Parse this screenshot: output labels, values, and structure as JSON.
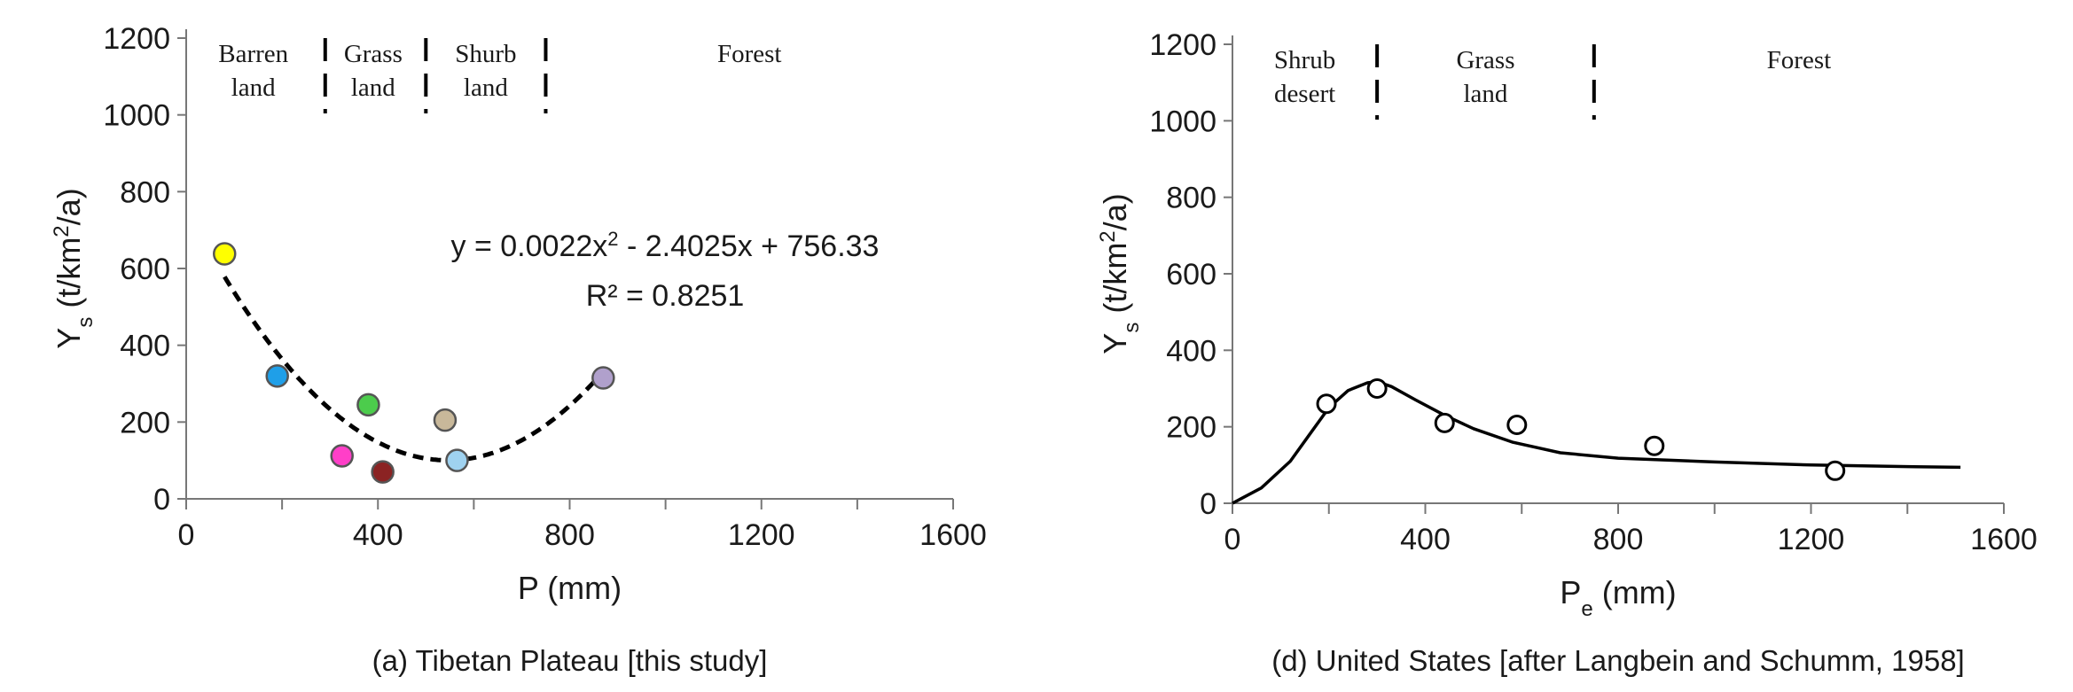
{
  "chart_data": [
    {
      "type": "scatter",
      "panel_caption": "(a)  Tibetan Plateau [this study]",
      "xlabel": "P (mm)",
      "ylabel": "Y",
      "ylabel_sub": "s",
      "ylabel_unit": "(t/km",
      "ylabel_sup": "2",
      "ylabel_tail": "/a)",
      "xlim": [
        0,
        1600
      ],
      "ylim": [
        0,
        1200
      ],
      "xticks": [
        "0",
        "400",
        "800",
        "1200",
        "1600"
      ],
      "yticks": [
        "0",
        "200",
        "400",
        "600",
        "800",
        "1000",
        "1200"
      ],
      "points": [
        {
          "x": 80,
          "y": 638,
          "color": "#ffff00"
        },
        {
          "x": 190,
          "y": 320,
          "color": "#1f9fe8"
        },
        {
          "x": 380,
          "y": 245,
          "color": "#4ccc4c"
        },
        {
          "x": 325,
          "y": 112,
          "color": "#ff3fc8"
        },
        {
          "x": 410,
          "y": 70,
          "color": "#8b2323"
        },
        {
          "x": 540,
          "y": 205,
          "color": "#c8b89a"
        },
        {
          "x": 565,
          "y": 100,
          "color": "#9fd2f0"
        },
        {
          "x": 870,
          "y": 315,
          "color": "#b0a0cc"
        }
      ],
      "fit": {
        "type": "quadratic",
        "coefficients": {
          "a": 0.0022,
          "b": -2.4025,
          "c": 756.33
        },
        "x_range": [
          80,
          870
        ],
        "style": "dashed"
      },
      "equation_label": "y = 0.0022x",
      "equation_sup": "2",
      "equation_tail": " - 2.4025x + 756.33",
      "r2_label": "R² = 0.8251",
      "zone_boundaries": [
        290,
        500,
        750
      ],
      "zones": [
        {
          "lines": [
            "Barren",
            "land"
          ],
          "x_center": 140
        },
        {
          "lines": [
            "Grass",
            "land"
          ],
          "x_center": 390
        },
        {
          "lines": [
            "Shurb",
            "land"
          ],
          "x_center": 625
        },
        {
          "lines": [
            "Forest"
          ],
          "x_center": 1175
        }
      ]
    },
    {
      "type": "line",
      "panel_caption": "(d)  United States [after Langbein and Schumm, 1958]",
      "xlabel": "P",
      "xlabel_sub": "e",
      "xlabel_tail": " (mm)",
      "ylabel": "Y",
      "ylabel_sub": "s",
      "ylabel_unit": "(t/km",
      "ylabel_sup": "2",
      "ylabel_tail": "/a)",
      "xlim": [
        0,
        1600
      ],
      "ylim": [
        0,
        1200
      ],
      "xticks": [
        "0",
        "400",
        "800",
        "1200",
        "1600"
      ],
      "yticks": [
        "0",
        "200",
        "400",
        "600",
        "800",
        "1000",
        "1200"
      ],
      "points": [
        {
          "x": 195,
          "y": 260
        },
        {
          "x": 300,
          "y": 300
        },
        {
          "x": 440,
          "y": 210
        },
        {
          "x": 590,
          "y": 205
        },
        {
          "x": 875,
          "y": 150
        },
        {
          "x": 1250,
          "y": 85
        }
      ],
      "curve": {
        "x": [
          0,
          60,
          120,
          160,
          200,
          240,
          280,
          300,
          330,
          380,
          440,
          500,
          580,
          680,
          800,
          1000,
          1200,
          1400,
          1510
        ],
        "y": [
          0,
          40,
          110,
          180,
          250,
          295,
          315,
          318,
          305,
          270,
          230,
          195,
          160,
          132,
          118,
          108,
          100,
          96,
          94
        ]
      },
      "zone_boundaries": [
        300,
        750
      ],
      "zones": [
        {
          "lines": [
            "Shrub",
            "desert"
          ],
          "x_center": 150
        },
        {
          "lines": [
            "Grass",
            "land"
          ],
          "x_center": 525
        },
        {
          "lines": [
            "Forest"
          ],
          "x_center": 1175
        }
      ]
    }
  ]
}
